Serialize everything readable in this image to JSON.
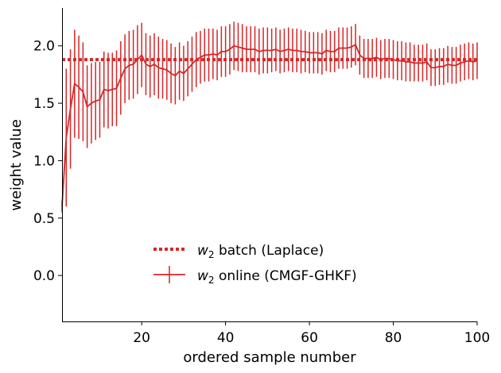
{
  "chart_data": {
    "type": "line",
    "xlabel": "ordered sample number",
    "ylabel": "weight value",
    "xlim": [
      1,
      100
    ],
    "ylim": [
      -0.4,
      2.33
    ],
    "x_ticks": [
      20,
      40,
      60,
      80,
      100
    ],
    "y_ticks": [
      0.0,
      0.5,
      1.0,
      1.5,
      2.0
    ],
    "y_tick_labels": [
      "0.0",
      "0.5",
      "1.0",
      "1.5",
      "2.0"
    ],
    "grid": false,
    "legend_position": "lower-center",
    "color": "#d62728",
    "series": [
      {
        "name": "w2 batch (Laplace)",
        "legend_label": {
          "var": "w",
          "sub": "2",
          "rest": " batch (Laplace)"
        },
        "style": "dotted",
        "value": 1.88
      },
      {
        "name": "w2 online (CMGF-GHKF)",
        "legend_label": {
          "var": "w",
          "sub": "2",
          "rest": " online (CMGF-GHKF)"
        },
        "style": "solid-errorbar",
        "x": [
          1,
          2,
          3,
          4,
          5,
          6,
          7,
          8,
          9,
          10,
          11,
          12,
          13,
          14,
          15,
          16,
          17,
          18,
          19,
          20,
          21,
          22,
          23,
          24,
          25,
          26,
          27,
          28,
          29,
          30,
          31,
          32,
          33,
          34,
          35,
          36,
          37,
          38,
          39,
          40,
          41,
          42,
          43,
          44,
          45,
          46,
          47,
          48,
          49,
          50,
          51,
          52,
          53,
          54,
          55,
          56,
          57,
          58,
          59,
          60,
          61,
          62,
          63,
          64,
          65,
          66,
          67,
          68,
          69,
          70,
          71,
          72,
          73,
          74,
          75,
          76,
          77,
          78,
          79,
          80,
          81,
          82,
          83,
          84,
          85,
          86,
          87,
          88,
          89,
          90,
          91,
          92,
          93,
          94,
          95,
          96,
          97,
          98,
          99,
          100
        ],
        "y": [
          0.6,
          1.2,
          1.45,
          1.67,
          1.64,
          1.6,
          1.47,
          1.5,
          1.52,
          1.53,
          1.62,
          1.61,
          1.62,
          1.63,
          1.72,
          1.8,
          1.83,
          1.84,
          1.88,
          1.92,
          1.84,
          1.82,
          1.84,
          1.81,
          1.8,
          1.79,
          1.76,
          1.74,
          1.78,
          1.76,
          1.8,
          1.84,
          1.88,
          1.9,
          1.92,
          1.92,
          1.93,
          1.92,
          1.95,
          1.95,
          1.97,
          2.0,
          1.99,
          1.98,
          1.97,
          1.97,
          1.97,
          1.95,
          1.96,
          1.96,
          1.96,
          1.97,
          1.95,
          1.96,
          1.97,
          1.96,
          1.96,
          1.95,
          1.95,
          1.94,
          1.94,
          1.94,
          1.93,
          1.96,
          1.95,
          1.95,
          1.98,
          1.98,
          1.98,
          1.99,
          2.01,
          1.92,
          1.89,
          1.89,
          1.89,
          1.9,
          1.88,
          1.89,
          1.89,
          1.88,
          1.87,
          1.87,
          1.86,
          1.86,
          1.85,
          1.85,
          1.85,
          1.86,
          1.81,
          1.81,
          1.82,
          1.82,
          1.84,
          1.83,
          1.83,
          1.85,
          1.86,
          1.87,
          1.86,
          1.87
        ],
        "err": [
          0.05,
          0.6,
          0.52,
          0.47,
          0.45,
          0.43,
          0.36,
          0.35,
          0.34,
          0.33,
          0.33,
          0.33,
          0.32,
          0.33,
          0.32,
          0.3,
          0.3,
          0.3,
          0.3,
          0.28,
          0.27,
          0.27,
          0.27,
          0.27,
          0.26,
          0.26,
          0.26,
          0.25,
          0.25,
          0.24,
          0.24,
          0.24,
          0.24,
          0.23,
          0.23,
          0.23,
          0.22,
          0.22,
          0.22,
          0.22,
          0.22,
          0.21,
          0.21,
          0.21,
          0.2,
          0.2,
          0.2,
          0.2,
          0.2,
          0.2,
          0.19,
          0.19,
          0.19,
          0.19,
          0.19,
          0.19,
          0.19,
          0.19,
          0.18,
          0.18,
          0.18,
          0.18,
          0.18,
          0.18,
          0.18,
          0.18,
          0.18,
          0.18,
          0.18,
          0.18,
          0.18,
          0.17,
          0.17,
          0.17,
          0.17,
          0.17,
          0.17,
          0.17,
          0.17,
          0.17,
          0.17,
          0.17,
          0.17,
          0.17,
          0.16,
          0.16,
          0.16,
          0.16,
          0.16,
          0.16,
          0.16,
          0.16,
          0.16,
          0.16,
          0.16,
          0.16,
          0.16,
          0.16,
          0.16,
          0.16
        ]
      }
    ]
  }
}
